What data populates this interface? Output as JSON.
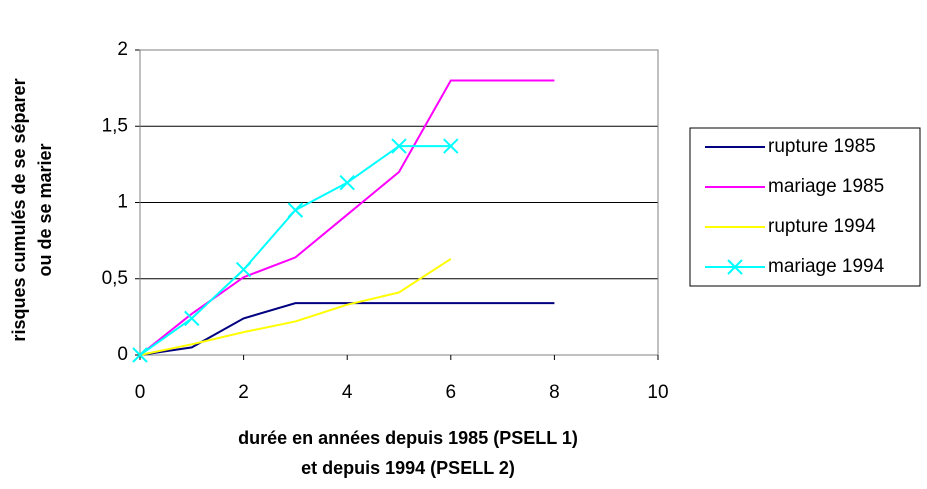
{
  "chart_data": {
    "type": "line",
    "ylabel": [
      "risques cumulés de se séparer",
      "ou de se marier"
    ],
    "xlabel": [
      "durée en années depuis 1985 (PSELL 1)",
      "et depuis 1994 (PSELL 2)"
    ],
    "xlim": [
      0,
      10
    ],
    "xticks": [
      0,
      2,
      4,
      6,
      8,
      10
    ],
    "ylim": [
      0,
      2
    ],
    "yticks": [
      0,
      {
        "value": 0.5,
        "label": "0,5"
      },
      1,
      {
        "value": 1.5,
        "label": "1,5"
      },
      2
    ],
    "grid": true,
    "legend": "right",
    "series": [
      {
        "name": "rupture 1985",
        "color": "#000080",
        "x": [
          0,
          1,
          2,
          3,
          4,
          5,
          6,
          7,
          8
        ],
        "values": [
          0,
          0.05,
          0.24,
          0.34,
          0.34,
          0.34,
          0.34,
          0.34,
          0.34
        ]
      },
      {
        "name": "mariage 1985",
        "color": "#ff00ff",
        "x": [
          0,
          1,
          2,
          3,
          4,
          5,
          6,
          7,
          8
        ],
        "values": [
          0,
          0.27,
          0.51,
          0.64,
          0.92,
          1.2,
          1.8,
          1.8,
          1.8
        ]
      },
      {
        "name": "rupture 1994",
        "color": "#ffff00",
        "x": [
          0,
          1,
          2,
          3,
          4,
          5,
          6
        ],
        "values": [
          0,
          0.07,
          0.15,
          0.22,
          0.33,
          0.41,
          0.63
        ]
      },
      {
        "name": "mariage 1994",
        "color": "#00ffff",
        "marker": "x",
        "x": [
          0,
          1,
          2,
          3,
          4,
          5,
          6
        ],
        "values": [
          0,
          0.24,
          0.56,
          0.95,
          1.13,
          1.37,
          1.37
        ]
      }
    ]
  }
}
